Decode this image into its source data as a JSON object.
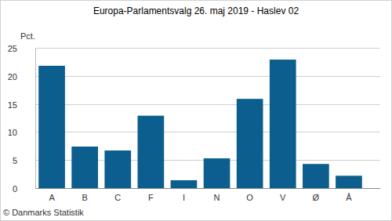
{
  "chart_data": {
    "type": "bar",
    "title": "Europa-Parlamentsvalg 26. maj 2019 - Haslev 02",
    "ylabel": "Pct.",
    "categories": [
      "A",
      "B",
      "C",
      "F",
      "I",
      "N",
      "O",
      "V",
      "Ø",
      "Å"
    ],
    "values": [
      21.8,
      7.4,
      6.7,
      12.9,
      1.4,
      5.3,
      15.9,
      22.9,
      4.3,
      2.2
    ],
    "color": "#0b5e8e",
    "ylim": [
      0,
      25
    ],
    "yticks": [
      0,
      5,
      10,
      15,
      20,
      25
    ],
    "grid": true,
    "annotations": [
      "© Danmarks Statistik"
    ]
  }
}
